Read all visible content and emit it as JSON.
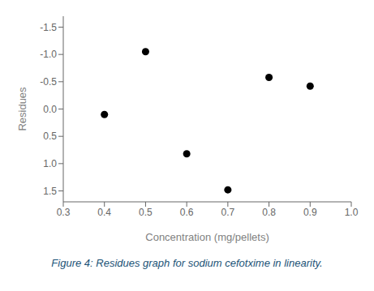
{
  "chart_data": {
    "type": "scatter",
    "x": [
      0.4,
      0.5,
      0.6,
      0.7,
      0.8,
      0.9
    ],
    "values": [
      0.1,
      -1.05,
      0.82,
      1.48,
      -0.58,
      -0.42
    ],
    "color": "black",
    "xlim": [
      0.3,
      1.0
    ],
    "ylim": [
      1.7,
      -1.7
    ],
    "xticks": [
      0.3,
      0.4,
      0.5,
      0.6,
      0.7,
      0.8,
      0.9,
      {
        "value": 1.0,
        "label": "1.0"
      }
    ],
    "yticks": [
      -1.5,
      {
        "value": -1.0,
        "label": "-1.0"
      },
      -0.5,
      {
        "value": 0.0,
        "label": "0.0"
      },
      0.5,
      {
        "value": 1.0,
        "label": "1.0"
      },
      1.5
    ],
    "x_label": "Concentration (mg/pellets)",
    "y_label": "Residues",
    "annotations": [
      "Figure 4: Residues graph for sodium cefotxime in linearity."
    ],
    "grid": false
  }
}
